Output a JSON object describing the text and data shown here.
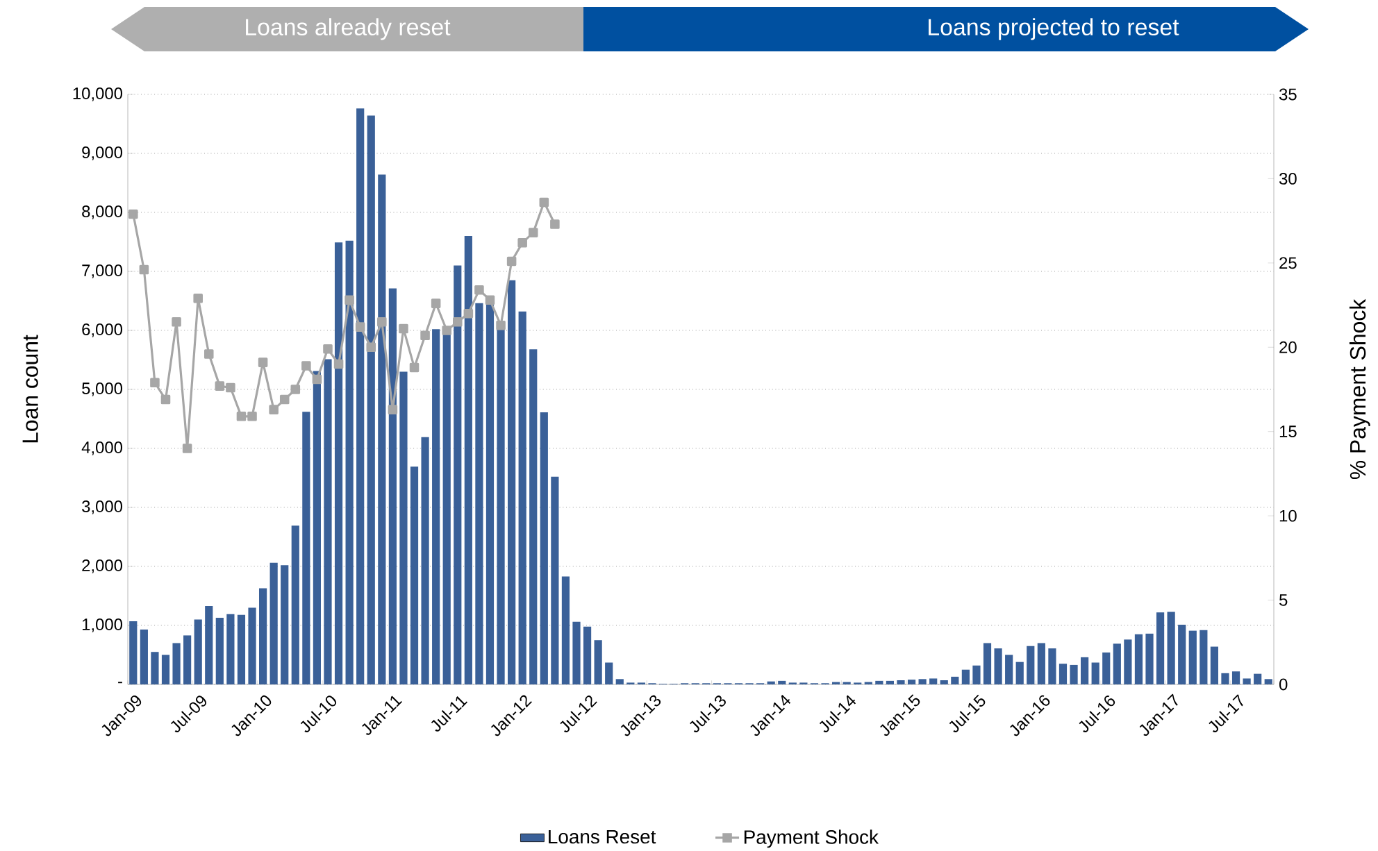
{
  "chart_data": {
    "type": "bar",
    "annotations": [
      "Loans already reset",
      "Loans projected to reset"
    ],
    "ylabel": "Loan count",
    "y2label": "% Payment Shock",
    "categories": [
      "Jan-09",
      null,
      null,
      null,
      null,
      null,
      "Jul-09",
      null,
      null,
      null,
      null,
      null,
      "Jan-10",
      null,
      null,
      null,
      null,
      null,
      "Jul-10",
      null,
      null,
      null,
      null,
      null,
      "Jan-11",
      null,
      null,
      null,
      null,
      null,
      "Jul-11",
      null,
      null,
      null,
      null,
      null,
      "Jan-12",
      null,
      null,
      null,
      null,
      null,
      "Jul-12",
      null,
      null,
      null,
      null,
      null,
      "Jan-13",
      null,
      null,
      null,
      null,
      null,
      "Jul-13",
      null,
      null,
      null,
      null,
      null,
      "Jan-14",
      null,
      null,
      null,
      null,
      null,
      "Jul-14",
      null,
      null,
      null,
      null,
      null,
      "Jan-15",
      null,
      null,
      null,
      null,
      null,
      "Jul-15",
      null,
      null,
      null,
      null,
      null,
      "Jan-16",
      null,
      null,
      null,
      null,
      null,
      "Jul-16",
      null,
      null,
      null,
      null,
      null,
      "Jan-17",
      null,
      null,
      null,
      null,
      null,
      "Jul-17",
      null,
      null,
      null
    ],
    "series": [
      {
        "name": "Loans Reset",
        "color": "#3A6098",
        "values": [
          1070,
          930,
          550,
          500,
          700,
          830,
          1100,
          1330,
          1130,
          1190,
          1180,
          1300,
          1630,
          2060,
          2020,
          2690,
          4620,
          5310,
          5510,
          7490,
          7520,
          9760,
          9640,
          8640,
          6710,
          5300,
          3690,
          4190,
          6020,
          5950,
          7100,
          7600,
          6460,
          6440,
          6030,
          6850,
          6320,
          5680,
          4610,
          3520,
          1830,
          1060,
          980,
          750,
          370,
          90,
          30,
          30,
          20,
          10,
          10,
          20,
          20,
          20,
          20,
          20,
          20,
          20,
          20,
          50,
          60,
          30,
          30,
          20,
          20,
          40,
          40,
          30,
          40,
          60,
          60,
          70,
          80,
          90,
          100,
          70,
          130,
          250,
          320,
          700,
          610,
          500,
          380,
          650,
          700,
          610,
          350,
          330,
          460,
          370,
          540,
          690,
          760,
          850,
          860,
          1220,
          1230,
          1010,
          910,
          920,
          640,
          190,
          220,
          100,
          180,
          90
        ]
      },
      {
        "name": "Payment Shock",
        "type": "line",
        "axis": "y2",
        "color": "#A6A6A6",
        "values": [
          27.9,
          24.6,
          17.9,
          16.9,
          21.5,
          14.0,
          22.9,
          19.6,
          17.7,
          17.6,
          15.9,
          15.9,
          19.1,
          16.3,
          16.9,
          17.5,
          18.9,
          18.1,
          19.9,
          19.0,
          22.8,
          21.2,
          20.0,
          21.5,
          16.3,
          21.1,
          18.8,
          20.7,
          22.6,
          21.0,
          21.5,
          22.0,
          23.4,
          22.8,
          21.3,
          25.1,
          26.2,
          26.8,
          28.6,
          27.3,
          null,
          null,
          null,
          null,
          null,
          null,
          null,
          null,
          null,
          null,
          null,
          null,
          null,
          null,
          null,
          null,
          null,
          null,
          null,
          null,
          null,
          null,
          null,
          null,
          null,
          null,
          null,
          null,
          null,
          null,
          null,
          null,
          null,
          null,
          null,
          null,
          null,
          null,
          null,
          null,
          null,
          null,
          null,
          null,
          null,
          null,
          null,
          null,
          null,
          null,
          null,
          null,
          null,
          null,
          null,
          null,
          null,
          null,
          null,
          null,
          null,
          null,
          null,
          null,
          null,
          null
        ]
      }
    ],
    "marker": "square",
    "line_style": "solid",
    "ylim": [
      0,
      10000
    ],
    "yticks": [
      {
        "value": 0,
        "label": "-"
      },
      {
        "value": 1000,
        "label": "1,000"
      },
      {
        "value": 2000,
        "label": "2,000"
      },
      {
        "value": 3000,
        "label": "3,000"
      },
      {
        "value": 4000,
        "label": "4,000"
      },
      {
        "value": 5000,
        "label": "5,000"
      },
      {
        "value": 6000,
        "label": "6,000"
      },
      {
        "value": 7000,
        "label": "7,000"
      },
      {
        "value": 8000,
        "label": "8,000"
      },
      {
        "value": 9000,
        "label": "9,000"
      },
      {
        "value": 10000,
        "label": "10,000"
      }
    ],
    "y2lim": [
      0,
      35
    ],
    "y2ticks": [
      0,
      5,
      10,
      15,
      20,
      25,
      30,
      35
    ],
    "grid": "y",
    "legend": "bottom"
  }
}
